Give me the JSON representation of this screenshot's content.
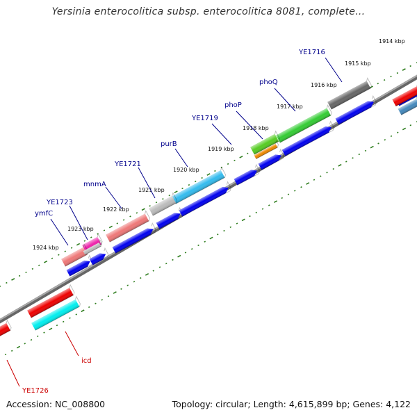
{
  "title": "Yersinia enterocolitica subsp. enterocolitica 8081, complete...",
  "footer": {
    "accession": "Accession: NC_008800",
    "summary": "Topology: circular; Length: 4,615,899 bp; Genes: 4,122"
  },
  "colors": {
    "backbone": "#888888",
    "forward_strand": "#0000ee",
    "ruler_dot": "#2e7d1e",
    "gene_label": "#00008b",
    "gene_label_red": "#cc0000"
  },
  "ruler": {
    "labels": [
      "1914 kbp",
      "1915 kbp",
      "1916 kbp",
      "1917 kbp",
      "1918 kbp",
      "1919 kbp",
      "1920 kbp",
      "1921 kbp",
      "1922 kbp",
      "1923 kbp",
      "1924 kbp"
    ]
  },
  "genes": [
    {
      "name": "YE1716",
      "color": "#666666"
    },
    {
      "name": "phoQ",
      "color": "#33cc33"
    },
    {
      "name": "phoP",
      "color": "#55cc22"
    },
    {
      "name": "YE1719",
      "color": "#33bbee"
    },
    {
      "name": "purB",
      "color": "#bbbbbb"
    },
    {
      "name": "YE1721",
      "color": "#ee7777"
    },
    {
      "name": "mnmA",
      "color": "#ee7777"
    },
    {
      "name": "YE1723",
      "color": "#ee22aa"
    },
    {
      "name": "ymfC",
      "color": "#ee7777"
    },
    {
      "name": "icd",
      "color": "#00eeee"
    },
    {
      "name": "YE1726",
      "color": "#ee0000"
    }
  ]
}
